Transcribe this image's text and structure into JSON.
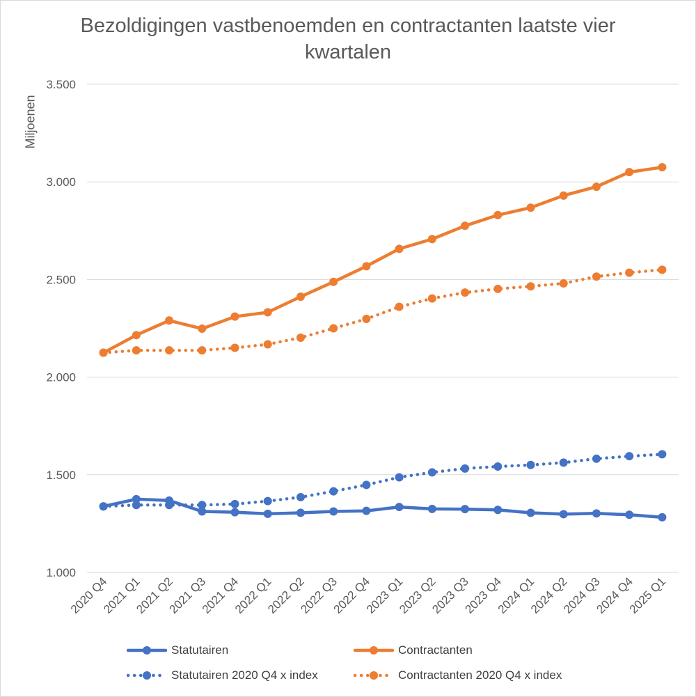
{
  "chart_data": {
    "type": "line",
    "title": "Bezoldigingen vastbenoemden en contractanten laatste vier kwartalen",
    "ylabel": "Miljoenen",
    "xlabel": "",
    "ylim": [
      1000,
      3500
    ],
    "yticks": [
      "1.000",
      "1.500",
      "2.000",
      "2.500",
      "3.000",
      "3.500"
    ],
    "ytick_values": [
      1000,
      1500,
      2000,
      2500,
      3000,
      3500
    ],
    "grid": "horizontal",
    "legend_position": "bottom",
    "categories": [
      "2020 Q4",
      "2021 Q1",
      "2021 Q2",
      "2021 Q3",
      "2021 Q4",
      "2022 Q1",
      "2022 Q2",
      "2022 Q3",
      "2022 Q4",
      "2023 Q1",
      "2023 Q2",
      "2023 Q3",
      "2023 Q4",
      "2024 Q1",
      "2024 Q2",
      "2024 Q3",
      "2024 Q4",
      "2025 Q1"
    ],
    "series": [
      {
        "name": "Statutairen",
        "color": "#4472c4",
        "style": "solid",
        "values": [
          1338,
          1375,
          1368,
          1312,
          1308,
          1300,
          1305,
          1312,
          1315,
          1335,
          1325,
          1324,
          1320,
          1305,
          1298,
          1302,
          1295,
          1282
        ]
      },
      {
        "name": "Contractanten",
        "color": "#ed7d31",
        "style": "solid",
        "values": [
          2125,
          2215,
          2290,
          2248,
          2310,
          2332,
          2412,
          2488,
          2568,
          2657,
          2707,
          2775,
          2830,
          2868,
          2930,
          2975,
          3050,
          3075
        ]
      },
      {
        "name": "Statutairen 2020 Q4 x index",
        "color": "#4472c4",
        "style": "dotted",
        "values": [
          1338,
          1345,
          1345,
          1345,
          1350,
          1365,
          1385,
          1415,
          1448,
          1487,
          1512,
          1532,
          1542,
          1550,
          1562,
          1582,
          1595,
          1605
        ]
      },
      {
        "name": "Contractanten 2020 Q4 x index",
        "color": "#ed7d31",
        "style": "dotted",
        "values": [
          2125,
          2137,
          2137,
          2137,
          2150,
          2168,
          2202,
          2250,
          2298,
          2360,
          2403,
          2433,
          2452,
          2465,
          2480,
          2515,
          2535,
          2550
        ]
      }
    ]
  }
}
